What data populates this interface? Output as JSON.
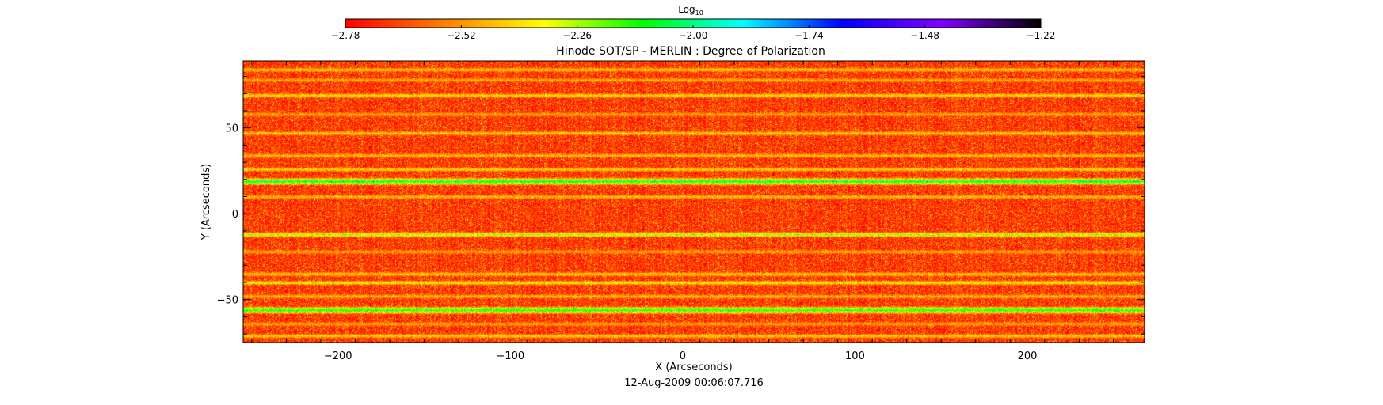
{
  "chart_data": {
    "type": "heatmap",
    "title": "Hinode SOT/SP - MERLIN : Degree of Polarization",
    "xlabel": "X (Arcseconds)",
    "ylabel": "Y (Arcseconds)",
    "footer": "12-Aug-2009 00:06:07.716",
    "xlim": [
      -255,
      268
    ],
    "ylim": [
      -75,
      89
    ],
    "xticks": [
      -200,
      -100,
      0,
      100,
      200
    ],
    "xtick_labels": [
      "−200",
      "−100",
      "0",
      "100",
      "200"
    ],
    "yticks": [
      -50,
      0,
      50
    ],
    "ytick_labels": [
      "−50",
      "0",
      "50"
    ],
    "colorbar": {
      "label": "Log",
      "label_sub": "10",
      "min": -2.78,
      "max": -1.22,
      "ticks": [
        -2.78,
        -2.52,
        -2.26,
        -2.0,
        -1.74,
        -1.48,
        -1.22
      ],
      "tick_labels": [
        "−2.78",
        "−2.52",
        "−2.26",
        "−2.00",
        "−1.74",
        "−1.48",
        "−1.22"
      ],
      "colors": [
        "#ff0000",
        "#ff8000",
        "#ffff00",
        "#00ff00",
        "#00ffff",
        "#0000ff",
        "#8000ff",
        "#000000"
      ]
    },
    "background_value": -2.7,
    "bands": [
      {
        "y": 84,
        "value": -2.3,
        "width": 1.5
      },
      {
        "y": 78,
        "value": -2.4,
        "width": 1.5
      },
      {
        "y": 69,
        "value": -2.25,
        "width": 1.5
      },
      {
        "y": 58,
        "value": -2.4,
        "width": 1.5
      },
      {
        "y": 47,
        "value": -2.3,
        "width": 1.5
      },
      {
        "y": 34,
        "value": -2.35,
        "width": 1.5
      },
      {
        "y": 26,
        "value": -2.3,
        "width": 1.5
      },
      {
        "y": 19,
        "value": -1.85,
        "width": 2.5
      },
      {
        "y": 10,
        "value": -2.35,
        "width": 1.5
      },
      {
        "y": -12,
        "value": -2.1,
        "width": 1.8
      },
      {
        "y": -22,
        "value": -2.4,
        "width": 1.5
      },
      {
        "y": -35,
        "value": -2.3,
        "width": 1.5
      },
      {
        "y": -40,
        "value": -2.2,
        "width": 1.5
      },
      {
        "y": -48,
        "value": -2.35,
        "width": 1.5
      },
      {
        "y": -56,
        "value": -1.9,
        "width": 2.5
      },
      {
        "y": -64,
        "value": -2.4,
        "width": 1.5
      },
      {
        "y": -71,
        "value": -2.3,
        "width": 1.5
      }
    ]
  }
}
